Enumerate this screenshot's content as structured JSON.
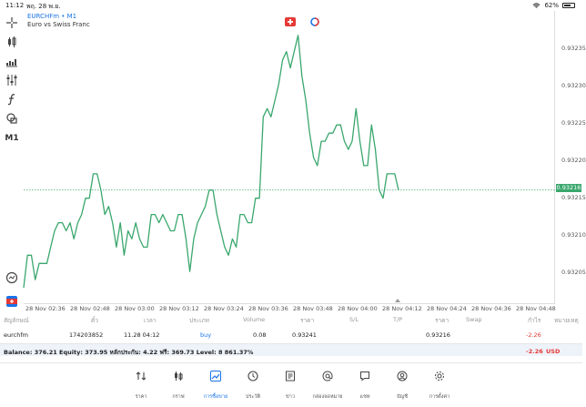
{
  "status": {
    "time": "11:12",
    "date": "พฤ. 28 พ.ย.",
    "battery": "62%"
  },
  "chart": {
    "symbol": "EURCHFm • M1",
    "description": "Euro vs Swiss Franc",
    "current_price": "0.93216",
    "price_labels": [
      "0.93235",
      "0.93230",
      "0.93225",
      "0.93220",
      "0.93215",
      "0.93210",
      "0.93205"
    ],
    "time_labels": [
      "28 Nov 02:36",
      "28 Nov 02:48",
      "28 Nov 03:00",
      "28 Nov 03:12",
      "28 Nov 03:24",
      "28 Nov 03:36",
      "28 Nov 03:48",
      "28 Nov 04:00",
      "28 Nov 04:12",
      "28 Nov 04:24",
      "28 Nov 04:36",
      "28 Nov 04:48"
    ],
    "line_color": "#3aa76d"
  },
  "chart_data": {
    "type": "line",
    "title": "EURCHFm • M1",
    "subtitle": "Euro vs Swiss Franc",
    "xlabel": "",
    "ylabel": "",
    "ylim": [
      0.93202,
      0.93238
    ],
    "x_tick_labels": [
      "28 Nov 02:36",
      "28 Nov 02:48",
      "28 Nov 03:00",
      "28 Nov 03:12",
      "28 Nov 03:24",
      "28 Nov 03:36",
      "28 Nov 03:48",
      "28 Nov 04:00",
      "28 Nov 04:12",
      "28 Nov 04:24",
      "28 Nov 04:36",
      "28 Nov 04:48"
    ],
    "series": [
      {
        "values": [
          0.93204,
          0.93208,
          0.93208,
          0.93205,
          0.93207,
          0.93207,
          0.93207,
          0.93209,
          0.93211,
          0.93212,
          0.93212,
          0.93211,
          0.93212,
          0.9321,
          0.93212,
          0.93213,
          0.93215,
          0.93215,
          0.93218,
          0.93218,
          0.93216,
          0.93213,
          0.93214,
          0.93212,
          0.93209,
          0.93212,
          0.93208,
          0.93211,
          0.9321,
          0.93212,
          0.9321,
          0.93209,
          0.93209,
          0.93213,
          0.93213,
          0.93212,
          0.93213,
          0.93212,
          0.93211,
          0.93211,
          0.93213,
          0.93213,
          0.9321,
          0.93206,
          0.9321,
          0.93212,
          0.93213,
          0.93214,
          0.93216,
          0.93216,
          0.93213,
          0.93211,
          0.93209,
          0.93208,
          0.9321,
          0.93209,
          0.93213,
          0.93213,
          0.93212,
          0.93212,
          0.93215,
          0.93215,
          0.93225,
          0.93226,
          0.93225,
          0.93227,
          0.93229,
          0.93232,
          0.93233,
          0.93231,
          0.93233,
          0.93235,
          0.9323,
          0.93227,
          0.93223,
          0.9322,
          0.93219,
          0.93222,
          0.93222,
          0.93223,
          0.93223,
          0.93224,
          0.93224,
          0.93222,
          0.93221,
          0.93222,
          0.93226,
          0.93222,
          0.93219,
          0.93219,
          0.93224,
          0.93221,
          0.93216,
          0.93215,
          0.93218,
          0.93218,
          0.93218,
          0.93216
        ]
      }
    ],
    "current_price_line": 0.93216,
    "grid": false
  },
  "toolbar": {
    "icons": [
      "crosshair-icon",
      "candlestick-icon",
      "volume-bars-icon",
      "indicators-icon",
      "function-icon",
      "objects-icon"
    ],
    "timeframe": "M1"
  },
  "table": {
    "headers": [
      "สัญลักษณ์",
      "ตั๋ว",
      "เวลา",
      "ประเภท",
      "Volume",
      "ราคา",
      "S/L",
      "T/P",
      "ราคา",
      "Swap",
      "กำไร",
      "หมายเหตุ"
    ],
    "rows": [
      [
        "eurchfm",
        "174203852",
        "11.28 04:12",
        "buy",
        "0.08",
        "0.93241",
        "",
        "",
        "0.93216",
        "",
        "-2.26",
        ""
      ]
    ]
  },
  "balance": {
    "text": "Balance: 376.21 Equity: 373.95 หลักประกัน: 4.22 ฟรี: 369.73 Level: 8 861.37%",
    "pl": "-2.26",
    "currency": "USD"
  },
  "nav": [
    {
      "label": "ราคา",
      "icon": "arrows-updown-icon"
    },
    {
      "label": "กราฟ",
      "icon": "candlestick-icon"
    },
    {
      "label": "การซื้อขาย",
      "icon": "trade-chart-icon",
      "active": true
    },
    {
      "label": "ประวัติ",
      "icon": "history-clock-icon"
    },
    {
      "label": "ข่าว",
      "icon": "news-icon"
    },
    {
      "label": "กล่องจดหมาย",
      "icon": "at-mail-icon"
    },
    {
      "label": "แชท",
      "icon": "chat-icon"
    },
    {
      "label": "บัญชี",
      "icon": "account-icon"
    },
    {
      "label": "การตั้งค่า",
      "icon": "gear-icon"
    }
  ]
}
